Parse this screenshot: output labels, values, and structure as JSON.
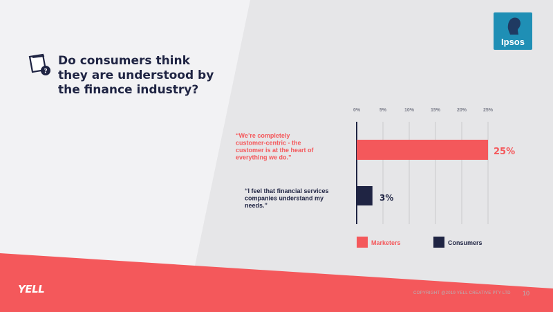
{
  "slide": {
    "title": "Do consumers think\nthey are understood by\nthe finance industry?",
    "icon": "question-document-icon",
    "page_number": "10",
    "copyright": "COPYRIGHT @2019 YELL CREATIVE PTY LTD",
    "logos": {
      "ipsos": "Ipsos",
      "yell": "YELL"
    },
    "colors": {
      "background": "#e6e6e8",
      "navy": "#1f2443",
      "coral": "#f4585b",
      "ipsos_blue": "#1f8fb5"
    }
  },
  "chart_data": {
    "type": "bar",
    "orientation": "horizontal",
    "categories": [
      "“We’re completely customer-centric - the customer is at the heart of everything we do.”",
      "“I feel that financial services companies understand my needs.”"
    ],
    "series": [
      {
        "name": "Marketers",
        "color": "#f4585b",
        "values": [
          25,
          null
        ]
      },
      {
        "name": "Consumers",
        "color": "#1f2443",
        "values": [
          null,
          3
        ]
      }
    ],
    "data_labels": [
      "25%",
      "3%"
    ],
    "x_ticks": [
      "0%",
      "5%",
      "10%",
      "15%",
      "20%",
      "25%"
    ],
    "xlim": [
      0,
      25
    ],
    "grid": true,
    "legend_position": "bottom"
  }
}
